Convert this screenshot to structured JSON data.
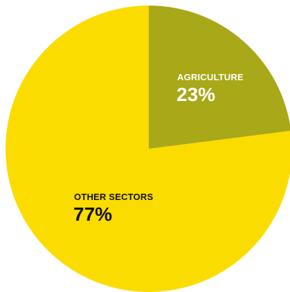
{
  "chart_data": {
    "type": "pie",
    "title": "",
    "slices": [
      {
        "label": "AGRICULTURE",
        "value": 23,
        "display": "23%",
        "color": "#a8a818",
        "text_color": "#ffffff"
      },
      {
        "label": "OTHER SECTORS",
        "value": 77,
        "display": "77%",
        "color": "#fbdc00",
        "text_color": "#111111"
      }
    ],
    "start": "12 o'clock",
    "direction": "clockwise",
    "legend": "none (labels inside slices)"
  }
}
